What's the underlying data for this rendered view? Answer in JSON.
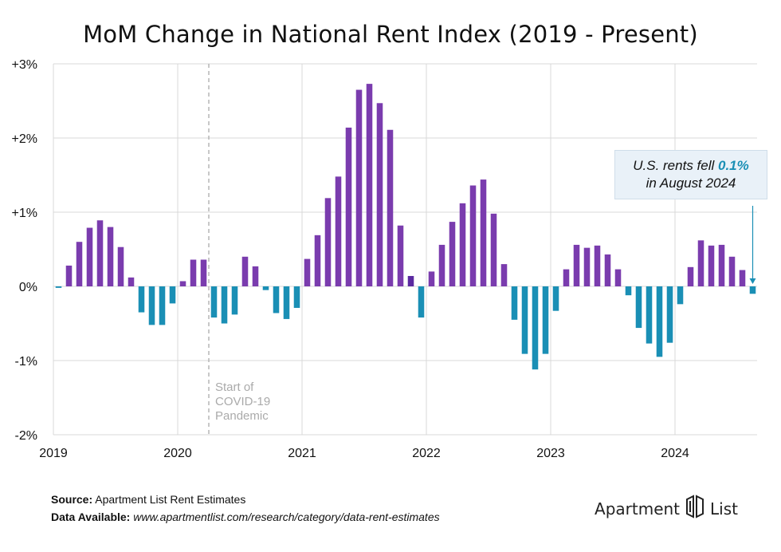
{
  "title": "MoM Change in National Rent Index (2019 - Present)",
  "colors": {
    "positive": "#7a3cae",
    "negative": "#1a8fb5",
    "highlight_bar": "#5b2aa0",
    "grid": "#d9d9d9",
    "annotation": "#b5b5b5"
  },
  "annotation": {
    "label_lines": [
      "Start of",
      "COVID-19",
      "Pandemic"
    ],
    "at": "2020-04"
  },
  "callout": {
    "text1": "U.S. rents fell ",
    "highlight": "0.1%",
    "text2": "in August 2024"
  },
  "footer": {
    "source_label": "Source:",
    "source_value": "Apartment List Rent Estimates",
    "data_label": "Data Available:",
    "data_value": "www.apartmentlist.com/research/category/data-rent-estimates"
  },
  "logo": {
    "left": "Apartment",
    "right": "List"
  },
  "chart_data": {
    "type": "bar",
    "ylim": [
      -2,
      3
    ],
    "y_ticks": [
      "+3%",
      "+2%",
      "+1%",
      "0%",
      "-1%",
      "-2%"
    ],
    "y_tick_values": [
      3,
      2,
      1,
      0,
      -1,
      -2
    ],
    "x_ticks": [
      "2019",
      "2020",
      "2021",
      "2022",
      "2023",
      "2024"
    ],
    "start": "2019-01",
    "values": [
      -0.02,
      0.28,
      0.6,
      0.79,
      0.89,
      0.8,
      0.53,
      0.12,
      -0.35,
      -0.52,
      -0.52,
      -0.23,
      0.07,
      0.36,
      0.36,
      -0.42,
      -0.5,
      -0.38,
      0.4,
      0.27,
      -0.05,
      -0.36,
      -0.44,
      -0.29,
      0.37,
      0.69,
      1.19,
      1.48,
      2.14,
      2.65,
      2.73,
      2.47,
      2.11,
      0.82,
      0.14,
      -0.42,
      0.2,
      0.56,
      0.87,
      1.12,
      1.36,
      1.44,
      0.98,
      0.3,
      -0.45,
      -0.91,
      -1.12,
      -0.91,
      -0.33,
      0.23,
      0.56,
      0.52,
      0.55,
      0.43,
      0.23,
      -0.12,
      -0.56,
      -0.77,
      -0.95,
      -0.76,
      -0.24,
      0.26,
      0.62,
      0.55,
      0.56,
      0.4,
      0.22,
      -0.1
    ],
    "highlight_index": 34
  }
}
